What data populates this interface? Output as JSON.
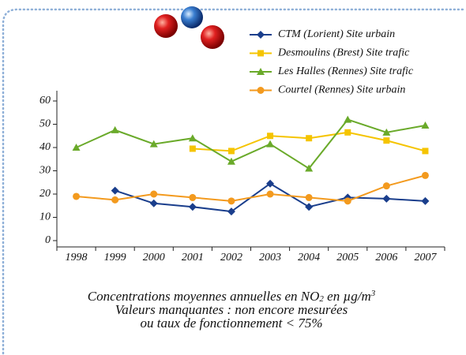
{
  "chart_data": {
    "type": "line",
    "categories": [
      "1998",
      "1999",
      "2000",
      "2001",
      "2002",
      "2003",
      "2004",
      "2005",
      "2006",
      "2007"
    ],
    "series": [
      {
        "name": "CTM (Lorient) Site urbain",
        "color": "#1a3e8c",
        "marker": "diamond",
        "values": [
          null,
          21.5,
          16,
          14.5,
          12.5,
          24.5,
          14.5,
          18.5,
          18,
          17
        ]
      },
      {
        "name": "Desmoulins (Brest) Site trafic",
        "color": "#f5c400",
        "marker": "square",
        "values": [
          null,
          null,
          null,
          39.5,
          38.5,
          45,
          44,
          46.5,
          43,
          38.5
        ]
      },
      {
        "name": "Les Halles (Rennes) Site trafic",
        "color": "#6aaa2a",
        "marker": "triangle",
        "values": [
          40,
          47.5,
          41.5,
          44,
          34,
          41.5,
          31,
          52,
          46.5,
          49.5
        ]
      },
      {
        "name": "Courtel (Rennes) Site urbain",
        "color": "#f39a1e",
        "marker": "circle",
        "values": [
          19,
          17.5,
          20,
          18.5,
          17,
          20,
          18.5,
          17,
          23.5,
          28
        ]
      }
    ],
    "ylim": [
      0,
      60
    ],
    "yticks": [
      0,
      10,
      20,
      30,
      40,
      50,
      60
    ],
    "caption": [
      [
        "Concentrations moyennes annuelles en NO",
        "2",
        " en µg/m",
        "3"
      ],
      [
        "Valeurs manquantes : non encore mesurées"
      ],
      [
        "ou taux de fonctionnement < 75%"
      ]
    ]
  }
}
